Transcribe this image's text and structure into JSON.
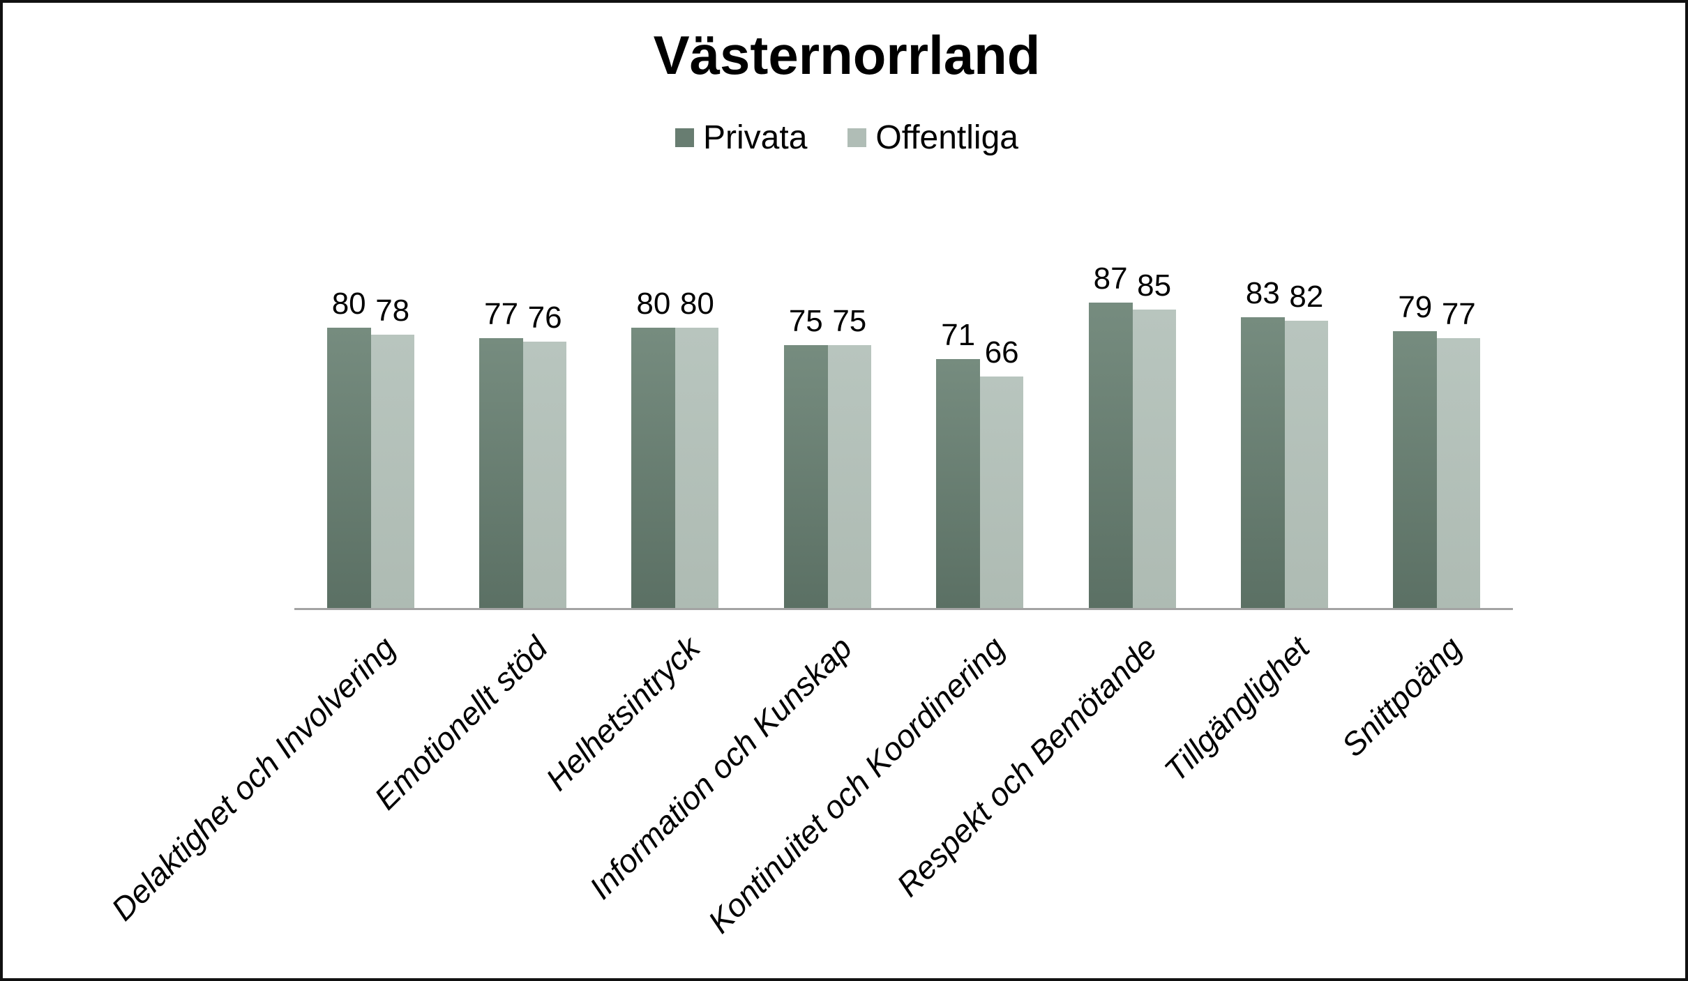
{
  "title": "Västernorrland",
  "chart_data": {
    "type": "bar",
    "title": "Västernorrland",
    "categories": [
      "Delaktighet och Involvering",
      "Emotionellt stöd",
      "Helhetsintryck",
      "Information och Kunskap",
      "Kontinuitet och Koordinering",
      "Respekt och Bemötande",
      "Tillgänglighet",
      "Snittpoäng"
    ],
    "series": [
      {
        "name": "Privata",
        "values": [
          80,
          77,
          80,
          75,
          71,
          87,
          83,
          79
        ],
        "color_top": "#768c7f",
        "color_bottom": "#5b7064",
        "legend_color": "#687d71"
      },
      {
        "name": "Offentliga",
        "values": [
          78,
          76,
          80,
          75,
          66,
          85,
          82,
          77
        ],
        "color_top": "#b8c5be",
        "color_bottom": "#aebbb3",
        "legend_color": "#b0bdb6"
      }
    ],
    "xlabel": "",
    "ylabel": "",
    "ylim": [
      0,
      100
    ],
    "grid": false,
    "legend_position": "top-center",
    "data_labels": true,
    "x_label_rotation_deg": 45,
    "x_label_style": "italic",
    "axis_line_color": "#a3a3a3",
    "background_color": "#ffffff",
    "border_color": "#111111"
  }
}
